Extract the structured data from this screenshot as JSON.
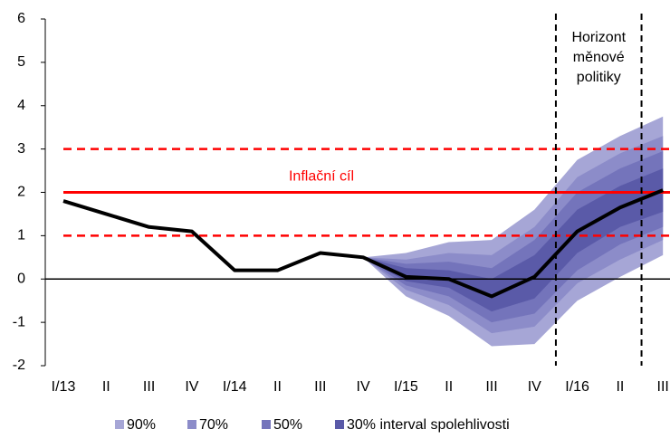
{
  "chart_data": {
    "type": "fan",
    "categories": [
      "I/13",
      "II",
      "III",
      "IV",
      "I/14",
      "II",
      "III",
      "IV",
      "I/15",
      "II",
      "III",
      "IV",
      "I/16",
      "II",
      "III"
    ],
    "ylim": [
      -2,
      6
    ],
    "yticks": [
      -2,
      -1,
      0,
      1,
      2,
      3,
      4,
      5,
      6
    ],
    "line": {
      "color": "#000000",
      "values": [
        1.8,
        1.5,
        1.2,
        1.1,
        0.2,
        0.2,
        0.6,
        0.5,
        0.05,
        0.0,
        -0.4,
        0.05,
        1.1,
        1.65,
        2.05
      ]
    },
    "bands": [
      {
        "name": "90%",
        "color": "#a6a6d6",
        "upper": [
          null,
          null,
          null,
          null,
          null,
          null,
          null,
          0.5,
          0.6,
          0.85,
          0.9,
          1.6,
          2.75,
          3.3,
          3.75
        ],
        "lower": [
          null,
          null,
          null,
          null,
          null,
          null,
          null,
          0.5,
          -0.4,
          -0.85,
          -1.55,
          -1.5,
          -0.5,
          0.05,
          0.55
        ]
      },
      {
        "name": "70%",
        "color": "#8c8cc9",
        "upper": [
          null,
          null,
          null,
          null,
          null,
          null,
          null,
          0.5,
          0.45,
          0.6,
          0.55,
          1.2,
          2.35,
          2.9,
          3.3
        ],
        "lower": [
          null,
          null,
          null,
          null,
          null,
          null,
          null,
          0.5,
          -0.25,
          -0.6,
          -1.25,
          -1.1,
          -0.1,
          0.45,
          0.9
        ]
      },
      {
        "name": "50%",
        "color": "#7474bb",
        "upper": [
          null,
          null,
          null,
          null,
          null,
          null,
          null,
          0.5,
          0.35,
          0.4,
          0.25,
          0.9,
          2.0,
          2.55,
          2.95
        ],
        "lower": [
          null,
          null,
          null,
          null,
          null,
          null,
          null,
          0.5,
          -0.15,
          -0.4,
          -1.0,
          -0.8,
          0.2,
          0.8,
          1.2
        ]
      },
      {
        "name": "30% interval spolehlivosti",
        "color": "#5a5aa8",
        "upper": [
          null,
          null,
          null,
          null,
          null,
          null,
          null,
          0.5,
          0.25,
          0.2,
          0.0,
          0.55,
          1.6,
          2.15,
          2.55
        ],
        "lower": [
          null,
          null,
          null,
          null,
          null,
          null,
          null,
          0.5,
          -0.05,
          -0.2,
          -0.75,
          -0.45,
          0.6,
          1.2,
          1.55
        ]
      }
    ],
    "target": {
      "label": "Inflační cíl",
      "value": 2,
      "lower": 1,
      "upper": 3,
      "color": "#ff0000"
    },
    "horizon": {
      "label": [
        "Horizont",
        "měnové",
        "politiky"
      ],
      "x": [
        11.5,
        13.5
      ]
    }
  }
}
